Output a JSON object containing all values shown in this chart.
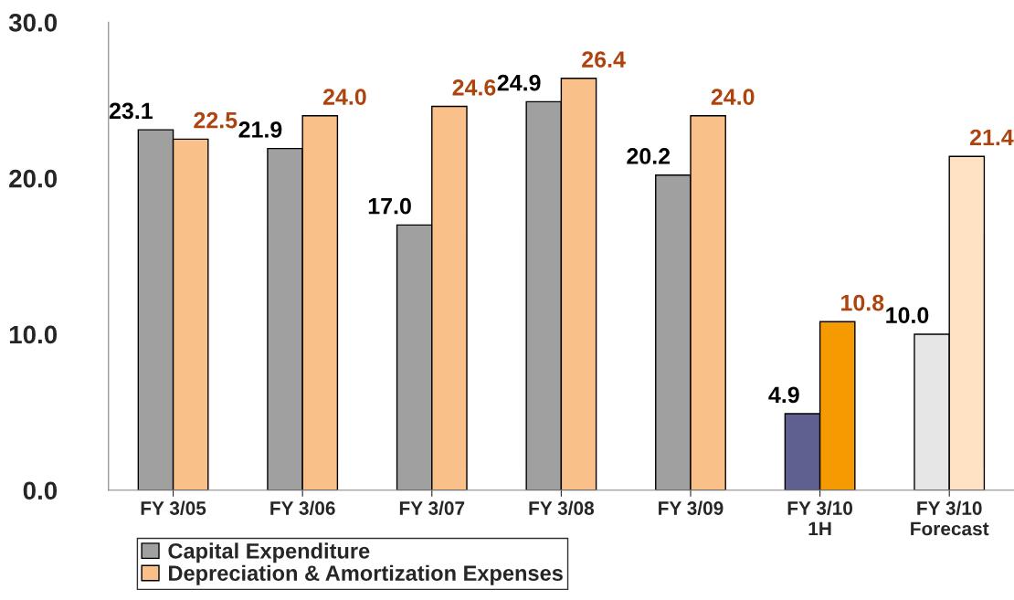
{
  "chart_data": {
    "type": "bar",
    "categories": [
      "FY 3/05",
      "FY 3/06",
      "FY 3/07",
      "FY 3/08",
      "FY 3/09",
      "FY 3/10\n1H",
      "FY 3/10\nForecast"
    ],
    "series": [
      {
        "name": "Capital Expenditure",
        "color": "#a0a0a0",
        "colors": [
          "#a0a0a0",
          "#a0a0a0",
          "#a0a0a0",
          "#a0a0a0",
          "#a0a0a0",
          "#5f5f90",
          "#e6e6e6"
        ],
        "values": [
          23.1,
          21.9,
          17.0,
          24.9,
          20.2,
          4.9,
          10.0
        ],
        "value_labels": [
          "23.1",
          "21.9",
          "17.0",
          "24.9",
          "20.2",
          "4.9",
          "10.0"
        ]
      },
      {
        "name": "Depreciation & Amortization Expenses",
        "color": "#f9c08a",
        "colors": [
          "#f9c08a",
          "#f9c08a",
          "#f9c08a",
          "#f9c08a",
          "#f9c08a",
          "#f59a00",
          "#ffe2c4"
        ],
        "values": [
          22.5,
          24.0,
          24.6,
          26.4,
          24.0,
          10.8,
          21.4
        ],
        "value_labels": [
          "22.5",
          "24.0",
          "24.6",
          "26.4",
          "24.0",
          "10.8",
          "21.4"
        ]
      }
    ],
    "ylim": [
      0,
      30
    ],
    "yticks": [
      {
        "value": 0,
        "label": "0.0"
      },
      {
        "value": 10,
        "label": "10.0"
      },
      {
        "value": 20,
        "label": "20.0"
      },
      {
        "value": 30,
        "label": "30.0"
      }
    ],
    "grid": false,
    "legend": "bottom"
  }
}
